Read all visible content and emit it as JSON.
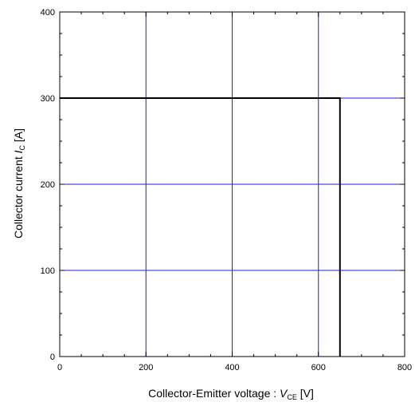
{
  "chart_data": {
    "type": "line",
    "title": "",
    "xlabel": {
      "prefix": "Collector-Emitter voltage : ",
      "symbol": "V",
      "subscript": "CE",
      "suffix": " [V]"
    },
    "ylabel": {
      "prefix": "Collector current ",
      "symbol": "I",
      "subscript": "C",
      "suffix": " [A]"
    },
    "xlim": [
      0,
      800
    ],
    "ylim": [
      0,
      400
    ],
    "x_ticks": [
      0,
      200,
      400,
      600,
      800
    ],
    "y_ticks": [
      0,
      100,
      200,
      300,
      400
    ],
    "x_tick_labels": [
      "0",
      "200",
      "400",
      "600",
      "800"
    ],
    "y_tick_labels": [
      "0",
      "100",
      "200",
      "300",
      "400"
    ],
    "x_minor_step": 50,
    "y_minor_step": 25,
    "grid": true,
    "grid_color": "#2222cc",
    "series": [
      {
        "color": "#000000",
        "x": [
          0,
          650,
          650
        ],
        "y": [
          300,
          300,
          0
        ]
      }
    ]
  }
}
